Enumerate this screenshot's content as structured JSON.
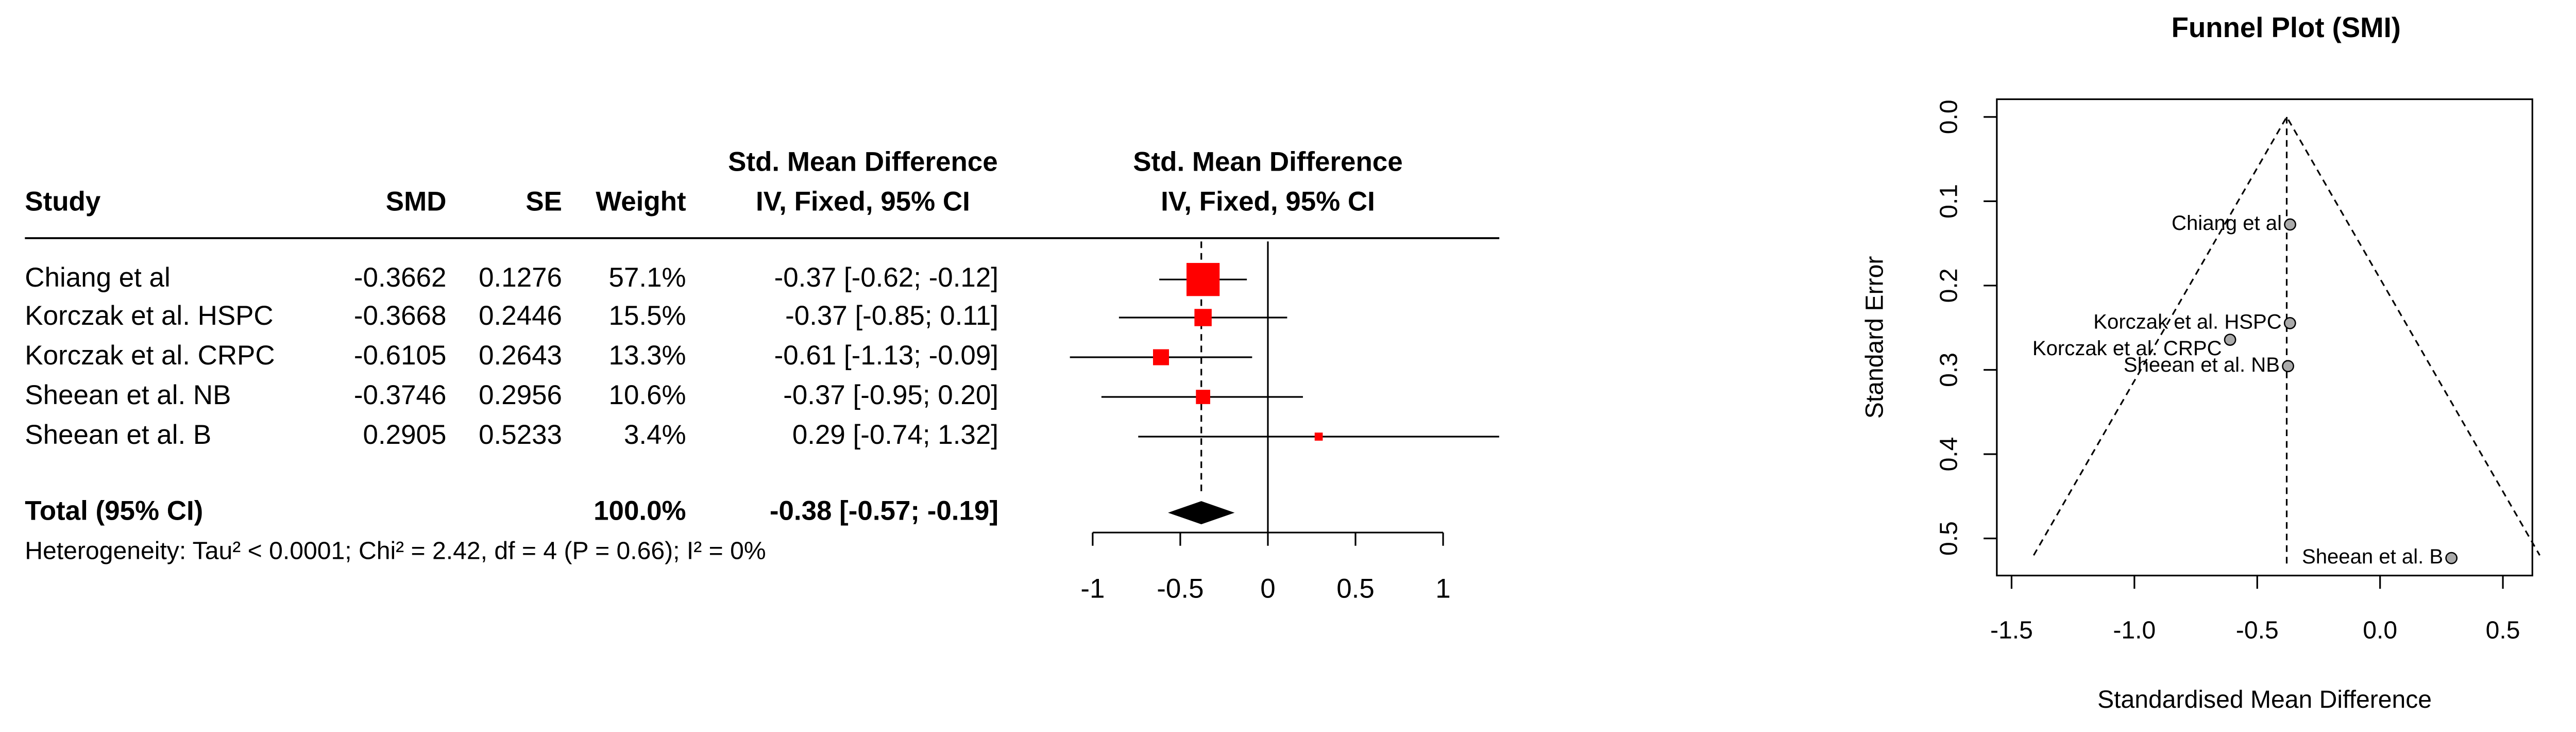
{
  "chart_data": [
    {
      "type": "forest",
      "column_headers": [
        "Study",
        "SMD",
        "SE",
        "Weight"
      ],
      "ci_header": [
        "Std. Mean Difference",
        "IV, Fixed, 95% CI"
      ],
      "plot_header": [
        "Std. Mean Difference",
        "IV, Fixed, 95% CI"
      ],
      "studies": [
        "Chiang et al",
        "Korczak et al. HSPC",
        "Korczak et al. CRPC",
        "Sheean et al. NB",
        "Sheean et al. B"
      ],
      "smd": [
        -0.3662,
        -0.3668,
        -0.6105,
        -0.3746,
        0.2905
      ],
      "se": [
        0.1276,
        0.2446,
        0.2643,
        0.2956,
        0.5233
      ],
      "weights": [
        57.1,
        15.5,
        13.3,
        10.6,
        3.4
      ],
      "weight_labels": [
        "57.1%",
        "15.5%",
        "13.3%",
        "10.6%",
        "3.4%"
      ],
      "estimates": [
        -0.37,
        -0.37,
        -0.61,
        -0.37,
        0.29
      ],
      "lower": [
        -0.62,
        -0.85,
        -1.13,
        -0.95,
        -0.74
      ],
      "upper": [
        -0.12,
        0.11,
        -0.09,
        0.2,
        1.32
      ],
      "ci_labels": [
        "-0.37 [-0.62; -0.12]",
        "-0.37 [-0.85;  0.11]",
        "-0.61 [-1.13; -0.09]",
        "-0.37 [-0.95;  0.20]",
        "0.29 [-0.74;  1.32]"
      ],
      "total": {
        "label": "Total (95% CI)",
        "weight": 100,
        "weight_label": "100.0%",
        "estimate": -0.38,
        "lower": -0.57,
        "upper": -0.19,
        "ci_label": "-0.38 [-0.57; -0.19]"
      },
      "heterogeneity": "Heterogeneity: Tau² < 0.0001; Chi² = 2.42, df = 4 (P = 0.66); I² = 0%",
      "color": "#ff0000",
      "xlim": [
        -1,
        1
      ],
      "xticks": [
        -1,
        -0.5,
        0,
        0.5,
        1
      ]
    },
    {
      "type": "funnel",
      "title": "Funnel Plot (SMI)",
      "x_label": "Standardised Mean Difference",
      "y_label": "Standard Error",
      "points": {
        "labels": [
          "Chiang et al",
          "Korczak et al. HSPC",
          "Korczak et al. CRPC",
          "Sheean et al. NB",
          "Sheean et al. B"
        ],
        "x": [
          -0.3662,
          -0.3668,
          -0.6105,
          -0.3746,
          0.2905
        ],
        "y": [
          0.1276,
          0.2446,
          0.2643,
          0.2956,
          0.5233
        ]
      },
      "reference_line": -0.38,
      "funnel_lines": {
        "x": [
          -1.41,
          -0.38,
          0.65
        ],
        "y": [
          0.52,
          0,
          0.52
        ]
      },
      "point_color": "#aaaaaa",
      "xlim": [
        -1.56,
        0.62
      ],
      "ylim": [
        -0.021,
        0.544
      ],
      "xticks": [
        -1.5,
        {
          "value": -1,
          "label": "-1.0"
        },
        -0.5,
        {
          "value": 0,
          "label": "0.0"
        },
        0.5
      ],
      "yticks": [
        {
          "value": 0,
          "label": "0.0"
        },
        0.1,
        0.2,
        0.3,
        0.4,
        0.5
      ]
    }
  ]
}
